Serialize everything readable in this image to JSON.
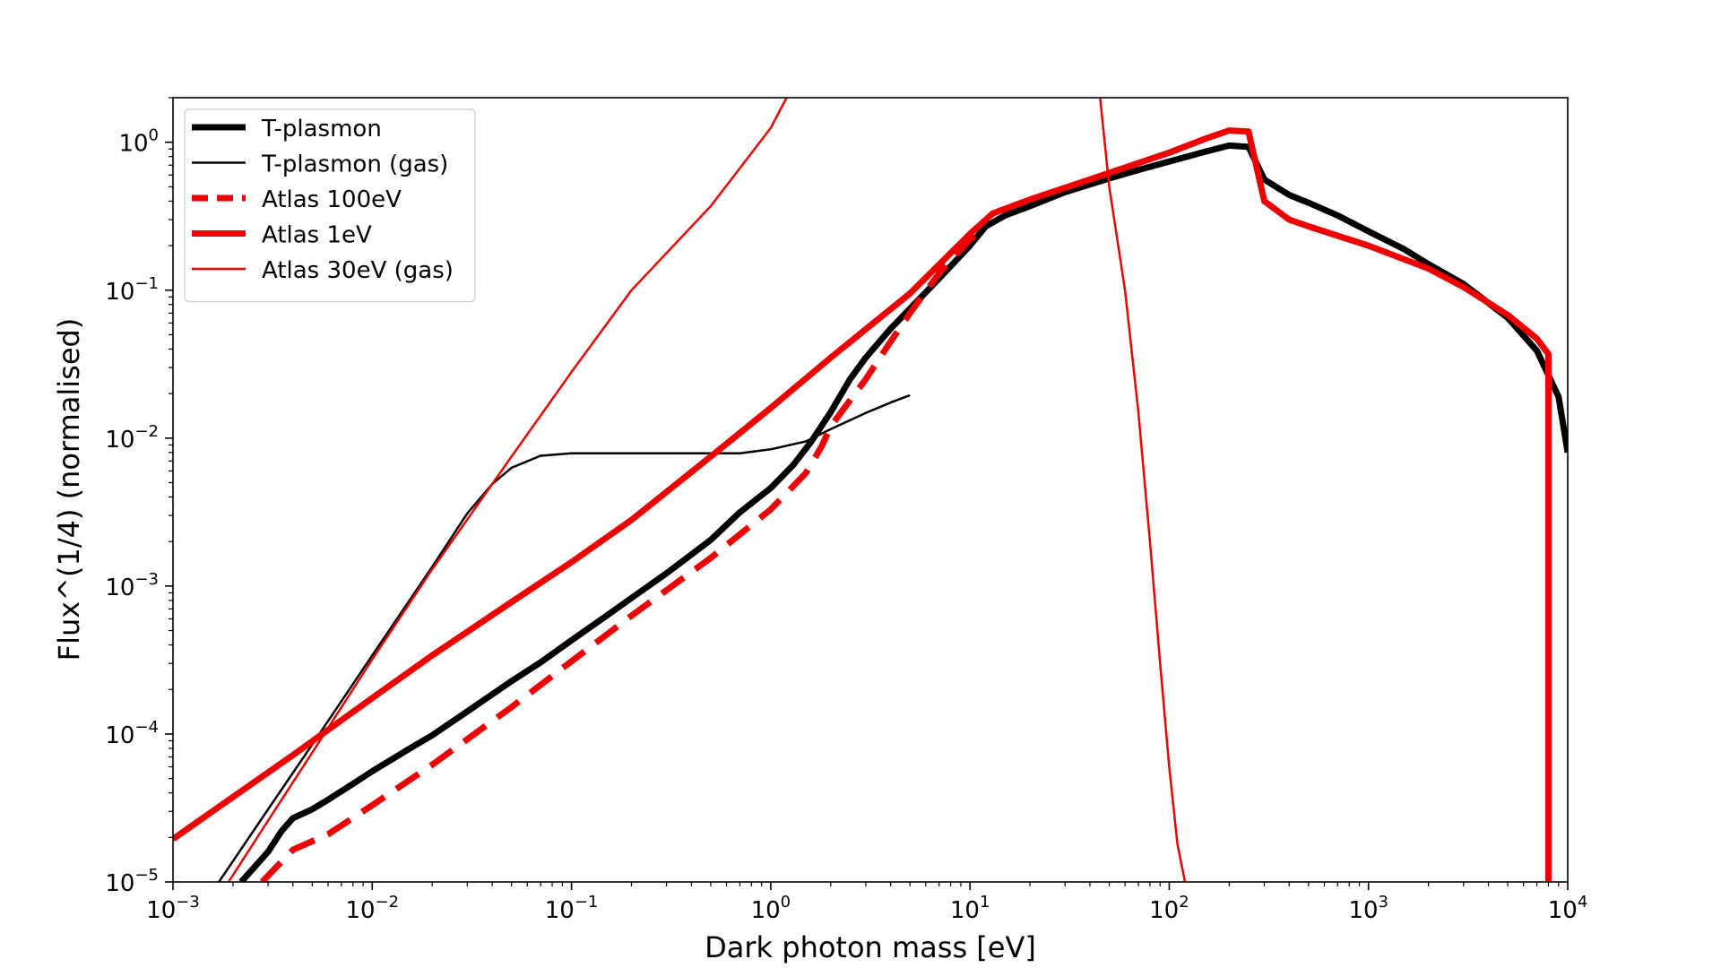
{
  "chart_data": {
    "type": "line",
    "xlabel": "Dark photon mass [eV]",
    "ylabel": "Flux^(1/4) (normalised)",
    "x_scale": "log",
    "y_scale": "log",
    "xlim": [
      0.001,
      10000
    ],
    "ylim": [
      1e-05,
      2
    ],
    "x_ticks": [
      {
        "value": 0.001,
        "base": "10",
        "exp": "−3"
      },
      {
        "value": 0.01,
        "base": "10",
        "exp": "−2"
      },
      {
        "value": 0.1,
        "base": "10",
        "exp": "−1"
      },
      {
        "value": 1,
        "base": "10",
        "exp": "0"
      },
      {
        "value": 10,
        "base": "10",
        "exp": "1"
      },
      {
        "value": 100,
        "base": "10",
        "exp": "2"
      },
      {
        "value": 1000,
        "base": "10",
        "exp": "3"
      },
      {
        "value": 10000,
        "base": "10",
        "exp": "4"
      }
    ],
    "y_ticks": [
      {
        "value": 1e-05,
        "base": "10",
        "exp": "−5"
      },
      {
        "value": 0.0001,
        "base": "10",
        "exp": "−4"
      },
      {
        "value": 0.001,
        "base": "10",
        "exp": "−3"
      },
      {
        "value": 0.01,
        "base": "10",
        "exp": "−2"
      },
      {
        "value": 0.1,
        "base": "10",
        "exp": "−1"
      },
      {
        "value": 1,
        "base": "10",
        "exp": "0"
      }
    ],
    "grid": false,
    "legend_position": "top-left",
    "series": [
      {
        "name": "T-plasmon",
        "color": "#000000",
        "width": 7,
        "dash": "",
        "points": [
          [
            0.0022,
            1e-05
          ],
          [
            0.003,
            1.6e-05
          ],
          [
            0.0035,
            2.2e-05
          ],
          [
            0.004,
            2.7e-05
          ],
          [
            0.005,
            3.1e-05
          ],
          [
            0.006,
            3.6e-05
          ],
          [
            0.008,
            4.6e-05
          ],
          [
            0.01,
            5.6e-05
          ],
          [
            0.015,
            7.8e-05
          ],
          [
            0.02,
            9.8e-05
          ],
          [
            0.03,
            0.000142
          ],
          [
            0.05,
            0.000228
          ],
          [
            0.07,
            0.000305
          ],
          [
            0.1,
            0.00043
          ],
          [
            0.15,
            0.00063
          ],
          [
            0.2,
            0.00083
          ],
          [
            0.3,
            0.00122
          ],
          [
            0.5,
            0.00205
          ],
          [
            0.7,
            0.00315
          ],
          [
            1.0,
            0.0046
          ],
          [
            1.3,
            0.0066
          ],
          [
            1.6,
            0.0095
          ],
          [
            2.0,
            0.015
          ],
          [
            2.5,
            0.025
          ],
          [
            3.0,
            0.035
          ],
          [
            4.0,
            0.055
          ],
          [
            5.0,
            0.075
          ],
          [
            7.0,
            0.12
          ],
          [
            10.0,
            0.2
          ],
          [
            12.0,
            0.27
          ],
          [
            15.0,
            0.32
          ],
          [
            20.0,
            0.37
          ],
          [
            30.0,
            0.46
          ],
          [
            50.0,
            0.57
          ],
          [
            70.0,
            0.65
          ],
          [
            100.0,
            0.74
          ],
          [
            150.0,
            0.86
          ],
          [
            200.0,
            0.95
          ],
          [
            250.0,
            0.93
          ],
          [
            300.0,
            0.56
          ],
          [
            400.0,
            0.44
          ],
          [
            500.0,
            0.39
          ],
          [
            700.0,
            0.32
          ],
          [
            1000.0,
            0.25
          ],
          [
            1500.0,
            0.19
          ],
          [
            2000.0,
            0.15
          ],
          [
            3000.0,
            0.11
          ],
          [
            5000.0,
            0.065
          ],
          [
            7000.0,
            0.039
          ],
          [
            9000.0,
            0.019
          ],
          [
            10000.0,
            0.008
          ]
        ]
      },
      {
        "name": "T-plasmon (gas)",
        "color": "#000000",
        "width": 2.5,
        "dash": "",
        "points": [
          [
            0.0017,
            1e-05
          ],
          [
            0.003,
            3.1e-05
          ],
          [
            0.005,
            8.5e-05
          ],
          [
            0.01,
            0.00034
          ],
          [
            0.02,
            0.00135
          ],
          [
            0.03,
            0.0031
          ],
          [
            0.04,
            0.0049
          ],
          [
            0.05,
            0.0063
          ],
          [
            0.07,
            0.0076
          ],
          [
            0.1,
            0.0079
          ],
          [
            0.3,
            0.0079
          ],
          [
            0.7,
            0.0079
          ],
          [
            1.0,
            0.0084
          ],
          [
            1.5,
            0.0095
          ],
          [
            2.0,
            0.0115
          ],
          [
            3.0,
            0.0148
          ],
          [
            4.0,
            0.0174
          ],
          [
            5.0,
            0.0195
          ]
        ]
      },
      {
        "name": "Atlas 100eV",
        "color": "#ee0000",
        "width": 7,
        "dash": "30 16",
        "points": [
          [
            0.0028,
            1e-05
          ],
          [
            0.004,
            1.65e-05
          ],
          [
            0.006,
            2.1e-05
          ],
          [
            0.01,
            3.3e-05
          ],
          [
            0.02,
            6.2e-05
          ],
          [
            0.05,
            0.000152
          ],
          [
            0.1,
            0.00031
          ],
          [
            0.2,
            0.00063
          ],
          [
            0.5,
            0.00155
          ],
          [
            1.0,
            0.0033
          ],
          [
            1.5,
            0.0058
          ],
          [
            1.8,
            0.0088
          ],
          [
            2.0,
            0.012
          ],
          [
            2.5,
            0.018
          ],
          [
            3.0,
            0.025
          ],
          [
            4.0,
            0.045
          ],
          [
            5.0,
            0.07
          ],
          [
            7.0,
            0.13
          ],
          [
            10.0,
            0.22
          ],
          [
            12.0,
            0.27
          ]
        ]
      },
      {
        "name": "Atlas 1eV",
        "color": "#ee0000",
        "width": 7,
        "dash": "",
        "points": [
          [
            0.001,
            1.95e-05
          ],
          [
            0.002,
            3.75e-05
          ],
          [
            0.004,
            7.2e-05
          ],
          [
            0.01,
            0.000175
          ],
          [
            0.02,
            0.00034
          ],
          [
            0.05,
            0.00078
          ],
          [
            0.1,
            0.00145
          ],
          [
            0.2,
            0.0028
          ],
          [
            0.5,
            0.0075
          ],
          [
            1.0,
            0.016
          ],
          [
            2.0,
            0.035
          ],
          [
            5.0,
            0.095
          ],
          [
            10.0,
            0.24
          ],
          [
            13.0,
            0.33
          ],
          [
            20.0,
            0.41
          ],
          [
            50.0,
            0.62
          ],
          [
            100.0,
            0.85
          ],
          [
            150.0,
            1.05
          ],
          [
            200.0,
            1.2
          ],
          [
            250.0,
            1.18
          ],
          [
            300.0,
            0.4
          ],
          [
            400.0,
            0.3
          ],
          [
            500.0,
            0.27
          ],
          [
            1000.0,
            0.2
          ],
          [
            2000.0,
            0.14
          ],
          [
            3000.0,
            0.105
          ],
          [
            5000.0,
            0.068
          ],
          [
            7000.0,
            0.047
          ],
          [
            8000.0,
            0.037
          ],
          [
            8000.0,
            1e-05
          ]
        ]
      },
      {
        "name": "Atlas 30eV (gas)",
        "color": "#ee0000",
        "width": 2.5,
        "dash": "",
        "points": [
          [
            0.0019,
            1e-05
          ],
          [
            0.003,
            2.6e-05
          ],
          [
            0.005,
            7.5e-05
          ],
          [
            0.01,
            0.00032
          ],
          [
            0.02,
            0.0013
          ],
          [
            0.05,
            0.0075
          ],
          [
            0.1,
            0.028
          ],
          [
            0.2,
            0.1
          ],
          [
            0.5,
            0.37
          ],
          [
            1.0,
            1.25
          ],
          [
            1.2,
            2.0
          ]
        ]
      },
      {
        "name": "",
        "color": "#ee0000",
        "width": 2.5,
        "dash": "",
        "points": [
          [
            45.0,
            2.0
          ],
          [
            50.0,
            0.5
          ],
          [
            60.0,
            0.1
          ],
          [
            70.0,
            0.015
          ],
          [
            80.0,
            0.002
          ],
          [
            90.0,
            0.0003
          ],
          [
            100.0,
            6e-05
          ],
          [
            110.0,
            1.8e-05
          ],
          [
            120.0,
            1e-05
          ]
        ]
      }
    ]
  }
}
